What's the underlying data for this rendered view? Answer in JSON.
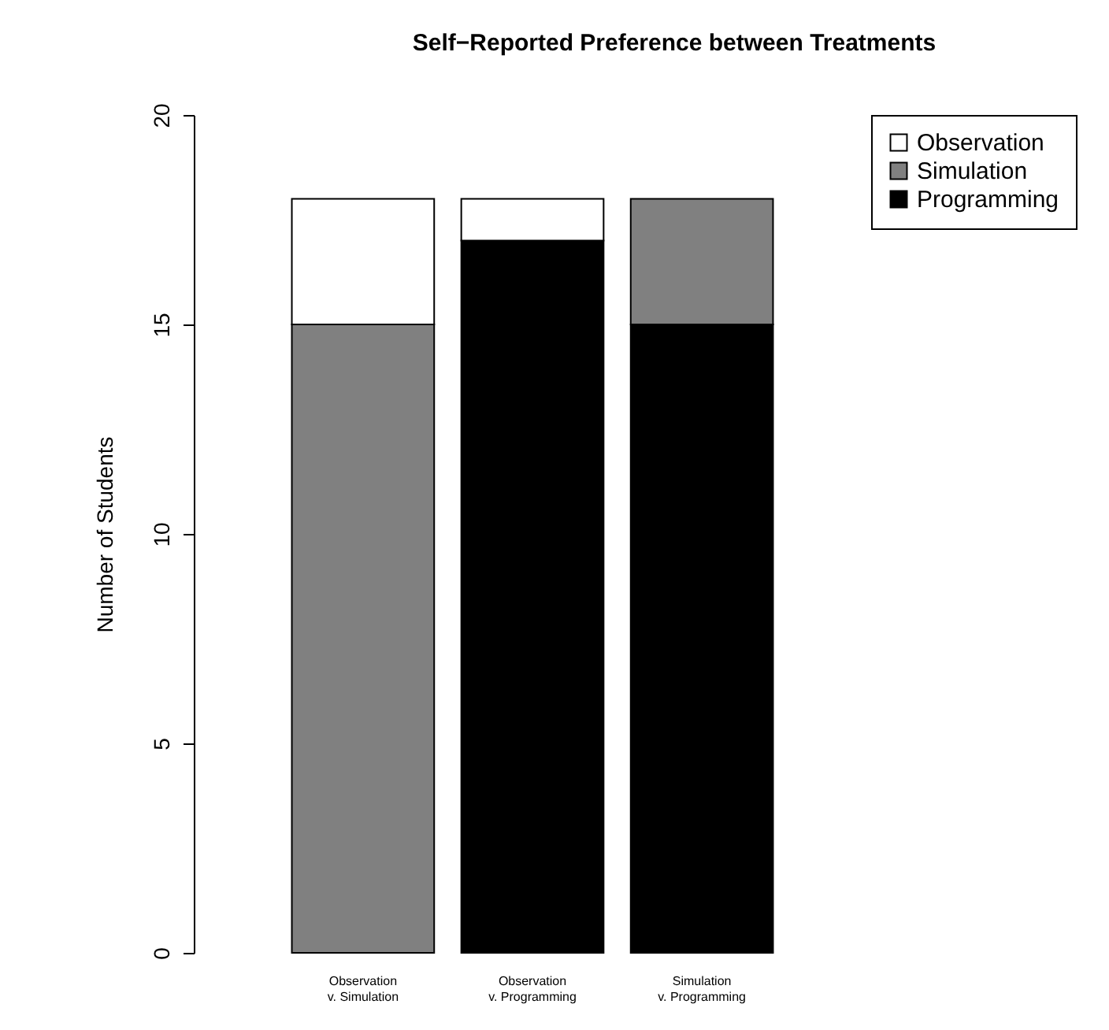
{
  "chart_data": {
    "type": "bar",
    "title": "Self−Reported Preference between Treatments",
    "ylabel": "Number of Students",
    "categories": [
      "Observation\nv. Simulation",
      "Observation\nv. Programming",
      "Simulation\nv. Programming"
    ],
    "stacked": true,
    "ylim": [
      0,
      20
    ],
    "yticks": [
      0,
      5,
      10,
      15,
      20
    ],
    "grid": false,
    "legend": "top right",
    "series": [
      {
        "name": "Programming",
        "color": "#000000",
        "values": [
          0,
          17,
          15
        ]
      },
      {
        "name": "Simulation",
        "color": "#808080",
        "values": [
          15,
          0,
          3
        ]
      },
      {
        "name": "Observation",
        "color": "#ffffff",
        "values": [
          3,
          1,
          0
        ]
      }
    ]
  }
}
